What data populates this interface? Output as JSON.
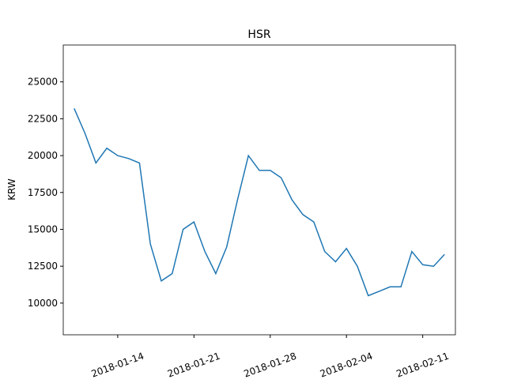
{
  "chart_data": {
    "type": "line",
    "title": "HSR",
    "ylabel": "KRW",
    "x": [
      "2018-01-10",
      "2018-01-11",
      "2018-01-12",
      "2018-01-13",
      "2018-01-14",
      "2018-01-15",
      "2018-01-16",
      "2018-01-17",
      "2018-01-18",
      "2018-01-19",
      "2018-01-20",
      "2018-01-21",
      "2018-01-22",
      "2018-01-23",
      "2018-01-24",
      "2018-01-25",
      "2018-01-26",
      "2018-01-27",
      "2018-01-28",
      "2018-01-29",
      "2018-01-30",
      "2018-01-31",
      "2018-02-01",
      "2018-02-02",
      "2018-02-03",
      "2018-02-04",
      "2018-02-05",
      "2018-02-06",
      "2018-02-07",
      "2018-02-08",
      "2018-02-09",
      "2018-02-10",
      "2018-02-11",
      "2018-02-12",
      "2018-02-13"
    ],
    "series": [
      {
        "name": "HSR",
        "color": "#1f77b4",
        "values": [
          23200,
          21500,
          19500,
          20500,
          20000,
          19800,
          19500,
          14000,
          11500,
          12000,
          15000,
          15500,
          13500,
          12000,
          13800,
          17000,
          20000,
          19000,
          19000,
          18500,
          17000,
          16000,
          15500,
          13500,
          12800,
          13700,
          12500,
          10500,
          10800,
          11100,
          11100,
          13500,
          12600,
          12500,
          13300
        ]
      }
    ],
    "xlim": [
      "2018-01-09",
      "2018-02-14"
    ],
    "xticks": [
      "2018-01-14",
      "2018-01-21",
      "2018-01-28",
      "2018-02-04",
      "2018-02-11"
    ],
    "ylim": [
      7850,
      27500
    ],
    "yticks": [
      10000,
      12500,
      15000,
      17500,
      20000,
      22500,
      25000
    ]
  }
}
